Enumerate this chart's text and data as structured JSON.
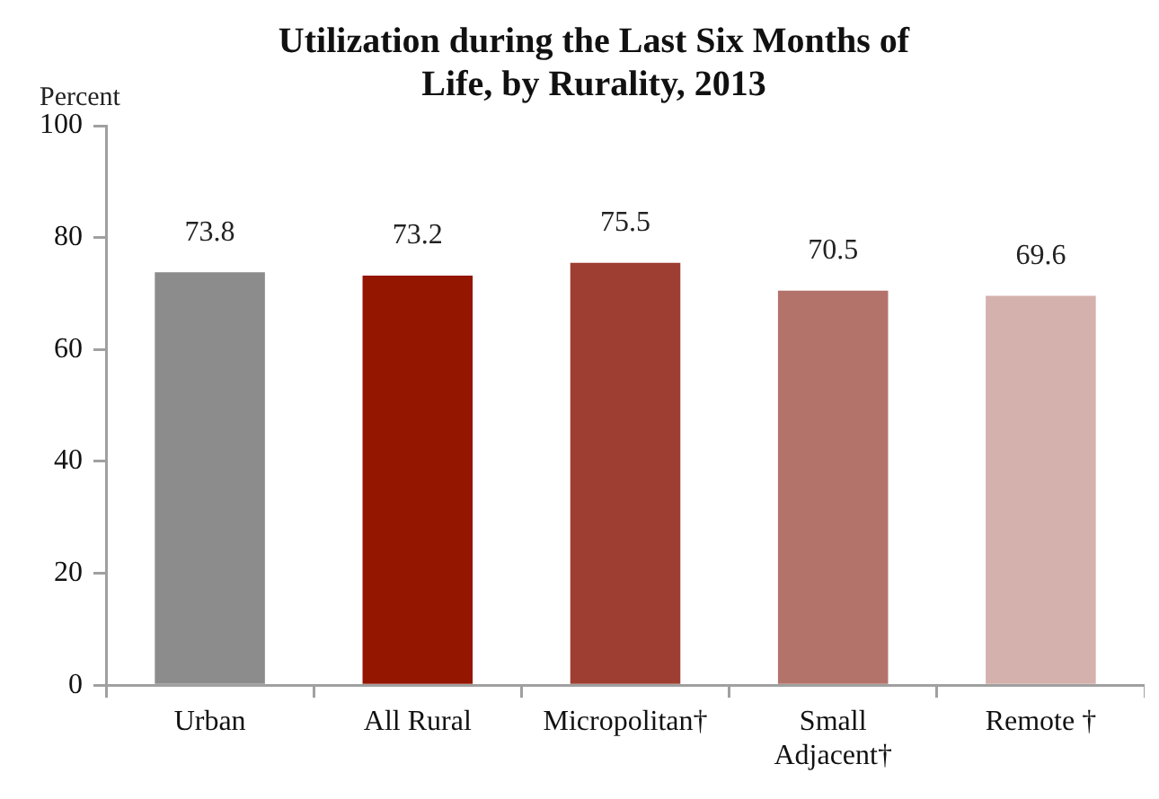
{
  "chart_data": {
    "type": "bar",
    "title": "Utilization during the Last Six Months of Life, by Rurality, 2013",
    "ylabel": "Percent",
    "categories": [
      "Urban",
      "All Rural",
      "Micropolitan†",
      "Small Adjacent†",
      "Remote †"
    ],
    "values": [
      73.8,
      73.2,
      75.5,
      70.5,
      69.6
    ],
    "colors": [
      "#8c8c8c",
      "#941500",
      "#9e3e33",
      "#b3736b",
      "#d4b1ad"
    ],
    "ylim": [
      0,
      100
    ],
    "yticks": [
      0,
      20,
      40,
      60,
      80,
      100
    ],
    "data_labels": true
  }
}
